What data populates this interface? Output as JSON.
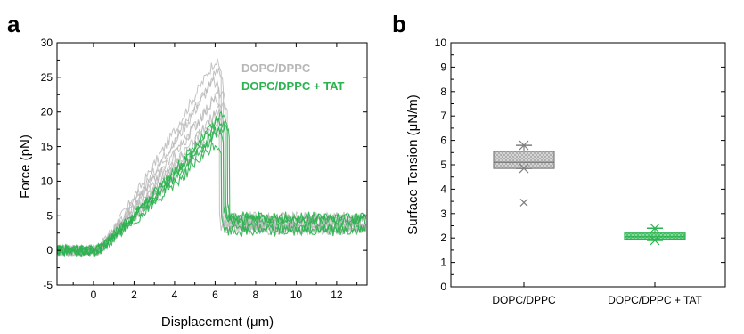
{
  "colors": {
    "gray": "#b8b8b8",
    "green": "#2bb34f",
    "axis": "#000000"
  },
  "chart_data": [
    {
      "panel_label": "a",
      "type": "line",
      "xlabel": "Displacement (μm)",
      "ylabel": "Force (pN)",
      "xlim": [
        -1.8,
        13.5
      ],
      "ylim": [
        -5,
        30
      ],
      "xticks": [
        0,
        2,
        4,
        6,
        8,
        10,
        12
      ],
      "yticks": [
        -5,
        0,
        5,
        10,
        15,
        20,
        25,
        30
      ],
      "legend_position": "top-right",
      "series": [
        {
          "name": "DOPC/DPPC",
          "color": "gray",
          "curves": [
            {
              "peak_x": 6.0,
              "peak_y": 27.5,
              "plateau": 3.5
            },
            {
              "peak_x": 6.1,
              "peak_y": 26.0,
              "plateau": 4.0
            },
            {
              "peak_x": 5.9,
              "peak_y": 24.5,
              "plateau": 3.2
            },
            {
              "peak_x": 6.2,
              "peak_y": 23.0,
              "plateau": 4.5
            },
            {
              "peak_x": 6.0,
              "peak_y": 22.0,
              "plateau": 3.8
            },
            {
              "peak_x": 6.3,
              "peak_y": 21.0,
              "plateau": 4.2
            },
            {
              "peak_x": 6.1,
              "peak_y": 20.0,
              "plateau": 3.0
            },
            {
              "peak_x": 6.2,
              "peak_y": 18.5,
              "plateau": 4.8
            },
            {
              "peak_x": 6.0,
              "peak_y": 17.5,
              "plateau": 3.6
            }
          ]
        },
        {
          "name": "DOPC/DPPC + TAT",
          "color": "green",
          "curves": [
            {
              "peak_x": 6.3,
              "peak_y": 19.5,
              "plateau": 4.8
            },
            {
              "peak_x": 6.2,
              "peak_y": 18.8,
              "plateau": 4.3
            },
            {
              "peak_x": 6.4,
              "peak_y": 18.0,
              "plateau": 3.3
            },
            {
              "peak_x": 6.1,
              "peak_y": 17.3,
              "plateau": 4.6
            },
            {
              "peak_x": 6.0,
              "peak_y": 15.3,
              "plateau": 2.8
            }
          ]
        }
      ]
    },
    {
      "panel_label": "b",
      "type": "box",
      "ylabel": "Surface Tension (μN/m)",
      "ylim": [
        0,
        10
      ],
      "yticks": [
        0,
        1,
        2,
        3,
        4,
        5,
        6,
        7,
        8,
        9,
        10
      ],
      "categories": [
        "DOPC/DPPC",
        "DOPC/DPPC + TAT"
      ],
      "boxes": [
        {
          "category": "DOPC/DPPC",
          "color": "gray",
          "q1": 4.85,
          "median": 5.1,
          "q3": 5.55,
          "whisker_low": 4.85,
          "whisker_high": 5.8,
          "outliers": [
            3.45
          ]
        },
        {
          "category": "DOPC/DPPC + TAT",
          "color": "green",
          "q1": 1.95,
          "median": 2.05,
          "q3": 2.2,
          "whisker_low": 1.9,
          "whisker_high": 2.4,
          "outliers": []
        }
      ]
    }
  ]
}
